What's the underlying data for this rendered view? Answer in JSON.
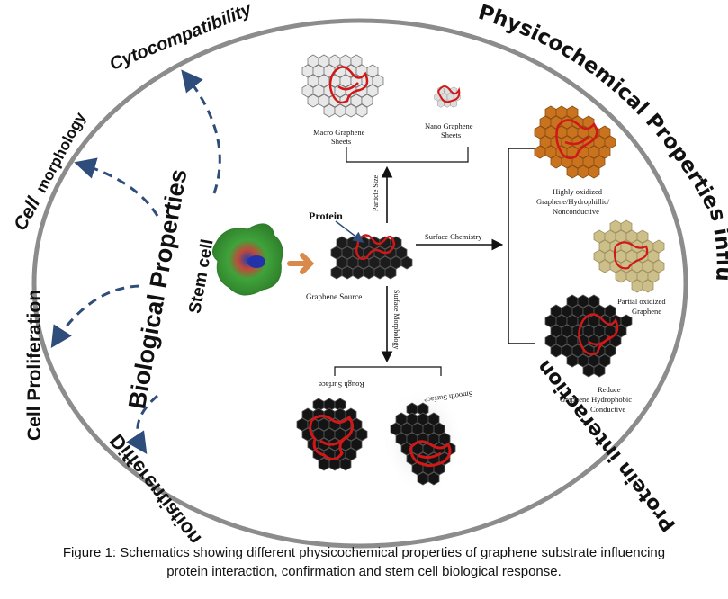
{
  "arc_labels": {
    "cytocompatibility": "Cytocompatibility",
    "cell_morphology_a": "Cell",
    "cell_morphology_b": "morphology",
    "cell_proliferation": "Cell Proliferation",
    "differentiation": "Differentiation",
    "physicochemical": "Physicochemical Properties influencing",
    "protein_interaction": "Protein interaction"
  },
  "center_labels": {
    "biological_properties": "Biological Properties",
    "stem_cell": "Stem cell",
    "protein": "Protein",
    "graphene_source": "Graphene Source",
    "particle_size": "Particle Size",
    "surface_chemistry": "Surface Chemistry",
    "surface_morphology": "Surface Morphology"
  },
  "particle_size": {
    "macro_line1": "Macro Graphene",
    "macro_line2": "Sheets",
    "nano_line1": "Nano Graphene",
    "nano_line2": "Sheets"
  },
  "surface_chemistry": {
    "highly_line1": "Highly oxidized",
    "highly_line2": "Graphene/Hydrophillic/",
    "highly_line3": "Nonconductive",
    "partial_line1": "Partial oxidized",
    "partial_line2": "Graphene",
    "reduce_line1": "Reduce",
    "reduce_line2": "Graphene Hydrophobic",
    "reduce_line3": "Conductive"
  },
  "surface_morphology": {
    "rough": "Rough Surface",
    "smooth": "Smooth Surface"
  },
  "caption": {
    "line1": "Figure 1: Schematics showing different physicochemical properties of graphene substrate influencing",
    "line2": "protein interaction, confirmation and stem cell biological response."
  },
  "colors": {
    "ring": "#8c8c8c",
    "dashed_arrow": "#2f4d7a",
    "protein": "#d01818",
    "highly_oxidized": "#c9731f",
    "partial_oxidized": "#cdbf8a",
    "reduced": "#141414",
    "macro_sheet": "#e8e8e8",
    "stem_cell_green": "#3fa33a",
    "connector": "#d98a4a"
  }
}
